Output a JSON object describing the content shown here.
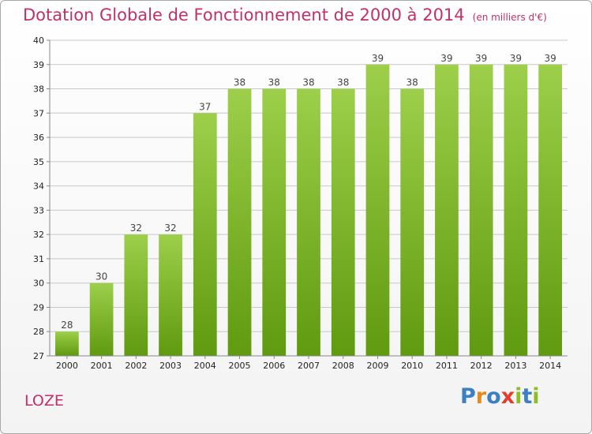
{
  "header": {
    "title": "Dotation Globale de Fonctionnement de 2000 à 2014",
    "unit": "(en milliers d'€)"
  },
  "footer": {
    "place": "LOZE",
    "brand": "Proxiti"
  },
  "colors": {
    "title": "#c0306a",
    "bar_top": "#9dcf4a",
    "bar_bottom": "#5f9a0f",
    "grid": "#c8c8c8",
    "brand_letters": [
      "#3b7fc4",
      "#e8891a",
      "#3b7fc4",
      "#e23d30",
      "#8cbf26",
      "#3b7fc4",
      "#8cbf26"
    ]
  },
  "chart_data": {
    "type": "bar",
    "categories": [
      "2000",
      "2001",
      "2002",
      "2003",
      "2004",
      "2005",
      "2006",
      "2007",
      "2008",
      "2009",
      "2010",
      "2011",
      "2012",
      "2013",
      "2014"
    ],
    "values": [
      28,
      30,
      32,
      32,
      37,
      38,
      38,
      38,
      38,
      39,
      38,
      39,
      39,
      39,
      39
    ],
    "ylim": [
      27,
      40
    ],
    "yticks": [
      27,
      28,
      29,
      30,
      31,
      32,
      33,
      34,
      35,
      36,
      37,
      38,
      39,
      40
    ],
    "grid": true,
    "data_labels": true
  }
}
